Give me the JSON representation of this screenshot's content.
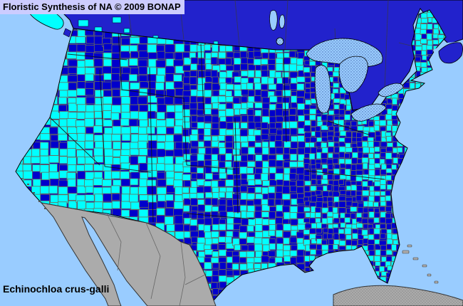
{
  "title_bar": {
    "text": "Floristic Synthesis of NA © 2009 BONAP",
    "bg": "#CCCCFF",
    "fg": "#000000"
  },
  "species_label": {
    "text": "Echinochloa crus-galli",
    "fg": "#000000"
  },
  "map": {
    "type": "county-choropleth",
    "colors": {
      "ocean": "#99CCFF",
      "canada": "#2222CC",
      "mexico_land": "#ABABAB",
      "county_cyan": "#00FFFF",
      "county_blue": "#0000CC",
      "county_border": "#6B6B5A",
      "state_border": "#111111",
      "outline": "#000000",
      "lake_fill": "#99CCFF",
      "lake_stipple": "#4466AA",
      "foreign_border": "#666666"
    },
    "cyan_fraction_grid": {
      "note": "estimated fraction of cyan counties, 10 cols (x 20-630) x 6 rows (y 10-430)",
      "values": [
        [
          0.5,
          0.45,
          0.45,
          0.5,
          0.75,
          0.55,
          0.5,
          0.5,
          0.55,
          0.9
        ],
        [
          0.5,
          0.55,
          0.45,
          0.5,
          0.5,
          0.55,
          0.5,
          0.45,
          0.7,
          0.85
        ],
        [
          0.75,
          0.85,
          0.8,
          0.55,
          0.45,
          0.5,
          0.35,
          0.4,
          0.65,
          0.85
        ],
        [
          0.8,
          0.85,
          0.85,
          0.7,
          0.45,
          0.45,
          0.25,
          0.35,
          0.6,
          0.8
        ],
        [
          0.8,
          0.9,
          0.8,
          0.35,
          0.45,
          0.55,
          0.5,
          0.4,
          0.5,
          0.7
        ],
        [
          0.5,
          0.5,
          0.5,
          0.45,
          0.5,
          0.6,
          0.5,
          0.55,
          0.65,
          0.6
        ]
      ]
    }
  }
}
